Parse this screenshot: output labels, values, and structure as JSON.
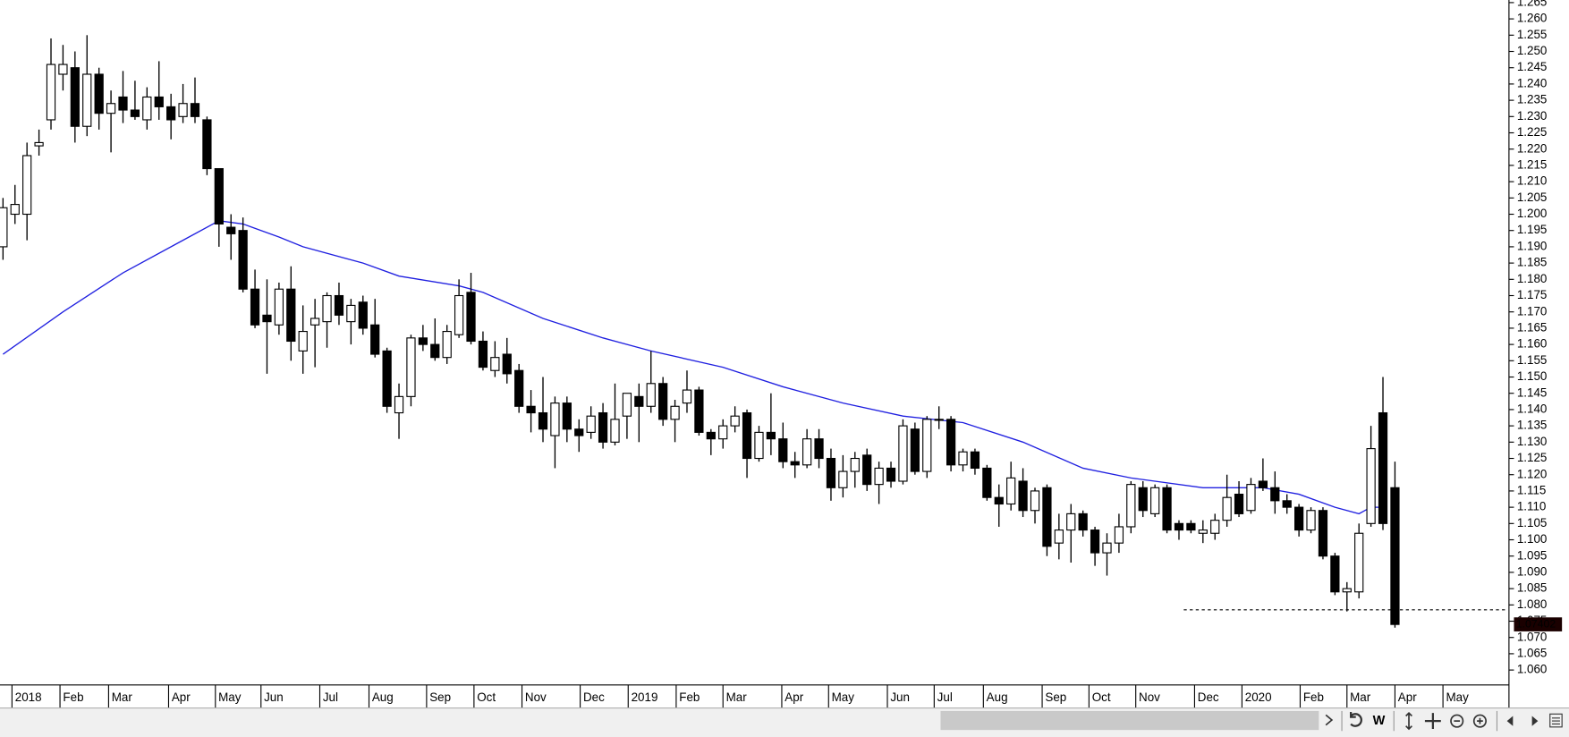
{
  "chart_data": {
    "type": "candlestick",
    "open": [
      1.19,
      1.2,
      1.2,
      1.221,
      1.229,
      1.243,
      1.245,
      1.227,
      1.243,
      1.231,
      1.236,
      1.232,
      1.229,
      1.236,
      1.233,
      1.23,
      1.234,
      1.229,
      1.214,
      1.196,
      1.195,
      1.177,
      1.169,
      1.166,
      1.177,
      1.158,
      1.166,
      1.167,
      1.175,
      1.167,
      1.173,
      1.166,
      1.158,
      1.139,
      1.144,
      1.162,
      1.16,
      1.156,
      1.163,
      1.176,
      1.161,
      1.152,
      1.157,
      1.152,
      1.141,
      1.139,
      1.132,
      1.142,
      1.134,
      1.133,
      1.139,
      1.13,
      1.138,
      1.144,
      1.141,
      1.148,
      1.137,
      1.142,
      1.146,
      1.133,
      1.131,
      1.135,
      1.139,
      1.125,
      1.133,
      1.131,
      1.124,
      1.123,
      1.131,
      1.125,
      1.116,
      1.121,
      1.126,
      1.117,
      1.122,
      1.118,
      1.134,
      1.121,
      1.137,
      1.137,
      1.123,
      1.127,
      1.122,
      1.113,
      1.111,
      1.118,
      1.109,
      1.116,
      1.099,
      1.103,
      1.108,
      1.103,
      1.096,
      1.099,
      1.104,
      1.116,
      1.108,
      1.116,
      1.105,
      1.105,
      1.102,
      1.102,
      1.106,
      1.114,
      1.109,
      1.118,
      1.116,
      1.112,
      1.11,
      1.103,
      1.109,
      1.095,
      1.084,
      1.084,
      1.105,
      1.139,
      1.116
    ],
    "high": [
      1.205,
      1.209,
      1.222,
      1.226,
      1.254,
      1.252,
      1.25,
      1.255,
      1.245,
      1.238,
      1.244,
      1.241,
      1.239,
      1.247,
      1.237,
      1.24,
      1.242,
      1.23,
      1.214,
      1.2,
      1.199,
      1.183,
      1.18,
      1.179,
      1.184,
      1.172,
      1.174,
      1.176,
      1.179,
      1.174,
      1.175,
      1.174,
      1.159,
      1.148,
      1.163,
      1.166,
      1.168,
      1.166,
      1.18,
      1.182,
      1.164,
      1.161,
      1.162,
      1.154,
      1.146,
      1.15,
      1.144,
      1.144,
      1.137,
      1.141,
      1.142,
      1.148,
      1.145,
      1.148,
      1.158,
      1.15,
      1.143,
      1.152,
      1.147,
      1.134,
      1.137,
      1.141,
      1.14,
      1.135,
      1.145,
      1.136,
      1.127,
      1.134,
      1.134,
      1.128,
      1.126,
      1.127,
      1.128,
      1.124,
      1.124,
      1.137,
      1.136,
      1.138,
      1.141,
      1.138,
      1.128,
      1.128,
      1.123,
      1.117,
      1.124,
      1.122,
      1.116,
      1.117,
      1.108,
      1.111,
      1.109,
      1.104,
      1.102,
      1.108,
      1.118,
      1.118,
      1.117,
      1.117,
      1.106,
      1.106,
      1.106,
      1.108,
      1.12,
      1.118,
      1.119,
      1.125,
      1.121,
      1.114,
      1.111,
      1.11,
      1.11,
      1.096,
      1.087,
      1.105,
      1.135,
      1.15,
      1.124
    ],
    "low": [
      1.186,
      1.197,
      1.192,
      1.218,
      1.226,
      1.238,
      1.222,
      1.224,
      1.226,
      1.219,
      1.228,
      1.229,
      1.226,
      1.229,
      1.223,
      1.228,
      1.228,
      1.212,
      1.19,
      1.186,
      1.176,
      1.165,
      1.151,
      1.163,
      1.155,
      1.151,
      1.153,
      1.159,
      1.166,
      1.16,
      1.163,
      1.156,
      1.139,
      1.131,
      1.141,
      1.158,
      1.155,
      1.154,
      1.162,
      1.16,
      1.152,
      1.15,
      1.148,
      1.139,
      1.133,
      1.13,
      1.122,
      1.13,
      1.127,
      1.131,
      1.128,
      1.129,
      1.131,
      1.13,
      1.139,
      1.135,
      1.13,
      1.139,
      1.132,
      1.126,
      1.128,
      1.133,
      1.119,
      1.124,
      1.126,
      1.122,
      1.119,
      1.122,
      1.122,
      1.112,
      1.113,
      1.116,
      1.115,
      1.111,
      1.116,
      1.117,
      1.12,
      1.119,
      1.134,
      1.121,
      1.121,
      1.12,
      1.112,
      1.104,
      1.109,
      1.107,
      1.105,
      1.095,
      1.094,
      1.093,
      1.101,
      1.092,
      1.089,
      1.096,
      1.102,
      1.107,
      1.107,
      1.102,
      1.1,
      1.102,
      1.099,
      1.1,
      1.104,
      1.107,
      1.108,
      1.115,
      1.108,
      1.108,
      1.101,
      1.102,
      1.094,
      1.083,
      1.078,
      1.082,
      1.104,
      1.103,
      1.073
    ],
    "close": [
      1.202,
      1.203,
      1.218,
      1.222,
      1.246,
      1.246,
      1.227,
      1.243,
      1.231,
      1.234,
      1.232,
      1.23,
      1.236,
      1.233,
      1.229,
      1.234,
      1.23,
      1.214,
      1.197,
      1.194,
      1.177,
      1.166,
      1.167,
      1.177,
      1.161,
      1.164,
      1.168,
      1.175,
      1.169,
      1.172,
      1.165,
      1.157,
      1.141,
      1.144,
      1.162,
      1.16,
      1.156,
      1.164,
      1.175,
      1.161,
      1.153,
      1.156,
      1.151,
      1.141,
      1.139,
      1.134,
      1.142,
      1.134,
      1.132,
      1.138,
      1.13,
      1.137,
      1.145,
      1.141,
      1.148,
      1.137,
      1.141,
      1.146,
      1.133,
      1.131,
      1.135,
      1.138,
      1.125,
      1.133,
      1.131,
      1.124,
      1.123,
      1.131,
      1.125,
      1.116,
      1.121,
      1.125,
      1.117,
      1.122,
      1.118,
      1.135,
      1.121,
      1.137,
      1.137,
      1.123,
      1.127,
      1.122,
      1.113,
      1.111,
      1.119,
      1.109,
      1.115,
      1.098,
      1.103,
      1.108,
      1.103,
      1.096,
      1.099,
      1.104,
      1.117,
      1.109,
      1.116,
      1.103,
      1.103,
      1.103,
      1.103,
      1.106,
      1.113,
      1.108,
      1.117,
      1.116,
      1.112,
      1.11,
      1.103,
      1.109,
      1.095,
      1.084,
      1.085,
      1.102,
      1.128,
      1.105,
      1.074
    ],
    "up_color": "#ffffff",
    "down_color": "#000000",
    "moving_average": {
      "color": "#2020e0",
      "x": [
        0,
        5,
        10,
        15,
        18,
        20,
        23,
        25,
        30,
        33,
        38,
        40,
        45,
        50,
        54,
        60,
        65,
        70,
        75,
        80,
        85,
        90,
        94,
        100,
        105,
        108,
        111,
        113,
        114,
        115
      ],
      "values": [
        1.157,
        1.17,
        1.182,
        1.192,
        1.198,
        1.197,
        1.193,
        1.19,
        1.185,
        1.181,
        1.178,
        1.176,
        1.168,
        1.162,
        1.158,
        1.153,
        1.147,
        1.142,
        1.138,
        1.136,
        1.13,
        1.122,
        1.119,
        1.116,
        1.116,
        1.114,
        1.11,
        1.108,
        1.11,
        1.11
      ]
    },
    "reference_line": {
      "value": 1.0785
    },
    "last_price": {
      "value": 1.07402,
      "label": "1.07402"
    },
    "xlim": [
      -0.25,
      125.25
    ],
    "ylim": [
      1.0554,
      1.2658
    ],
    "xticks": [
      {
        "value": 0.75,
        "label": "2018"
      },
      {
        "value": 4.75,
        "label": "Feb"
      },
      {
        "value": 8.8,
        "label": "Mar"
      },
      {
        "value": 13.8,
        "label": "Apr"
      },
      {
        "value": 17.7,
        "label": "May"
      },
      {
        "value": 21.5,
        "label": "Jun"
      },
      {
        "value": 26.4,
        "label": "Jul"
      },
      {
        "value": 30.5,
        "label": "Aug"
      },
      {
        "value": 35.3,
        "label": "Sep"
      },
      {
        "value": 39.25,
        "label": "Oct"
      },
      {
        "value": 43.25,
        "label": "Nov"
      },
      {
        "value": 48.1,
        "label": "Dec"
      },
      {
        "value": 52.1,
        "label": "2019"
      },
      {
        "value": 56.1,
        "label": "Feb"
      },
      {
        "value": 60,
        "label": "Mar"
      },
      {
        "value": 64.9,
        "label": "Apr"
      },
      {
        "value": 68.8,
        "label": "May"
      },
      {
        "value": 73.7,
        "label": "Jun"
      },
      {
        "value": 77.6,
        "label": "Jul"
      },
      {
        "value": 81.7,
        "label": "Aug"
      },
      {
        "value": 86.6,
        "label": "Sep"
      },
      {
        "value": 90.5,
        "label": "Oct"
      },
      {
        "value": 94.4,
        "label": "Nov"
      },
      {
        "value": 99.3,
        "label": "Dec"
      },
      {
        "value": 103.25,
        "label": "2020"
      },
      {
        "value": 108.1,
        "label": "Feb"
      },
      {
        "value": 112,
        "label": "Mar"
      },
      {
        "value": 116,
        "label": "Apr"
      },
      {
        "value": 120,
        "label": "May"
      }
    ],
    "yticks": [
      {
        "value": 1.06,
        "label": "1.060"
      },
      1.065,
      {
        "value": 1.07,
        "label": "1.070"
      },
      1.075,
      {
        "value": 1.08,
        "label": "1.080"
      },
      1.085,
      {
        "value": 1.09,
        "label": "1.090"
      },
      1.095,
      {
        "value": 1.1,
        "label": "1.100"
      },
      1.105,
      {
        "value": 1.11,
        "label": "1.110"
      },
      1.115,
      {
        "value": 1.12,
        "label": "1.120"
      },
      1.125,
      {
        "value": 1.13,
        "label": "1.130"
      },
      1.135,
      {
        "value": 1.14,
        "label": "1.140"
      },
      1.145,
      {
        "value": 1.15,
        "label": "1.150"
      },
      1.155,
      {
        "value": 1.16,
        "label": "1.160"
      },
      1.165,
      {
        "value": 1.17,
        "label": "1.170"
      },
      1.175,
      {
        "value": 1.18,
        "label": "1.180"
      },
      1.185,
      {
        "value": 1.19,
        "label": "1.190"
      },
      1.195,
      {
        "value": 1.2,
        "label": "1.200"
      },
      1.205,
      {
        "value": 1.21,
        "label": "1.210"
      },
      1.215,
      {
        "value": 1.22,
        "label": "1.220"
      },
      1.225,
      {
        "value": 1.23,
        "label": "1.230"
      },
      1.235,
      {
        "value": 1.24,
        "label": "1.240"
      },
      1.245,
      {
        "value": 1.25,
        "label": "1.250"
      },
      1.255,
      {
        "value": 1.26,
        "label": "1.260"
      },
      1.265
    ]
  },
  "toolbar": {
    "period": "W"
  }
}
